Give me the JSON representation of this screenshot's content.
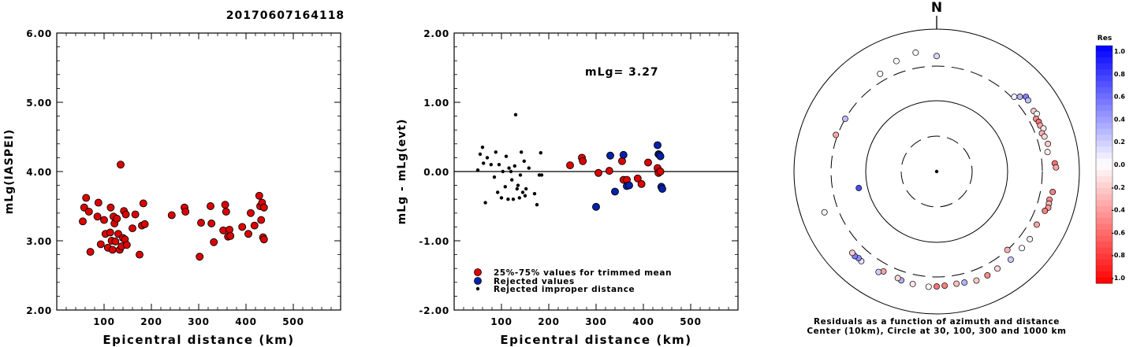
{
  "event_id": "20170607164118",
  "chart_data": [
    {
      "type": "scatter",
      "ylabel": "mLg(IASPEI)",
      "xlabel": "Epicentral distance (km)",
      "xlim": [
        0,
        600
      ],
      "ylim": [
        2.0,
        6.0
      ],
      "xticks": [
        "100",
        "200",
        "300",
        "400",
        "500"
      ],
      "xtick_values": [
        100,
        200,
        300,
        400,
        500
      ],
      "yticks": [
        "2.00",
        "3.00",
        "4.00",
        "5.00",
        "6.00"
      ],
      "ytick_values": [
        2,
        3,
        4,
        5,
        6
      ],
      "color": "#dd0000",
      "points": [
        [
          55,
          3.28
        ],
        [
          58,
          3.48
        ],
        [
          62,
          3.62
        ],
        [
          68,
          3.42
        ],
        [
          71,
          2.84
        ],
        [
          86,
          3.35
        ],
        [
          88,
          3.55
        ],
        [
          93,
          2.95
        ],
        [
          100,
          3.3
        ],
        [
          103,
          3.1
        ],
        [
          108,
          2.9
        ],
        [
          113,
          3.12
        ],
        [
          114,
          3.48
        ],
        [
          116,
          3.0
        ],
        [
          118,
          2.87
        ],
        [
          120,
          3.35
        ],
        [
          122,
          3.25
        ],
        [
          124,
          2.99
        ],
        [
          127,
          3.32
        ],
        [
          130,
          3.1
        ],
        [
          133,
          2.87
        ],
        [
          135,
          4.1
        ],
        [
          137,
          2.92
        ],
        [
          140,
          3.04
        ],
        [
          142,
          3.43
        ],
        [
          144,
          3.02
        ],
        [
          146,
          3.38
        ],
        [
          148,
          2.94
        ],
        [
          160,
          3.18
        ],
        [
          166,
          3.38
        ],
        [
          175,
          2.8
        ],
        [
          180,
          3.22
        ],
        [
          183,
          3.54
        ],
        [
          186,
          3.24
        ],
        [
          243,
          3.37
        ],
        [
          270,
          3.48
        ],
        [
          272,
          3.42
        ],
        [
          302,
          2.77
        ],
        [
          305,
          3.26
        ],
        [
          325,
          3.5
        ],
        [
          327,
          3.25
        ],
        [
          332,
          2.98
        ],
        [
          352,
          3.15
        ],
        [
          356,
          3.52
        ],
        [
          358,
          3.42
        ],
        [
          362,
          3.06
        ],
        [
          365,
          3.16
        ],
        [
          367,
          3.07
        ],
        [
          392,
          3.2
        ],
        [
          405,
          3.1
        ],
        [
          410,
          3.4
        ],
        [
          418,
          3.22
        ],
        [
          428,
          3.65
        ],
        [
          430,
          3.5
        ],
        [
          432,
          3.3
        ],
        [
          434,
          3.55
        ],
        [
          436,
          3.05
        ],
        [
          438,
          3.02
        ],
        [
          438,
          3.48
        ]
      ]
    },
    {
      "type": "scatter",
      "ylabel": "mLg - mLg(evt)",
      "xlabel": "Epicentral distance (km)",
      "xlim": [
        0,
        600
      ],
      "ylim": [
        -2.0,
        2.0
      ],
      "xticks": [
        "100",
        "200",
        "300",
        "400",
        "500"
      ],
      "xtick_values": [
        100,
        200,
        300,
        400,
        500
      ],
      "yticks": [
        "-2.00",
        "-1.00",
        "0.00",
        "1.00",
        "2.00"
      ],
      "ytick_values": [
        -2,
        -1,
        0,
        1,
        2
      ],
      "annotation": "mLg= 3.27",
      "reference_line": 0,
      "legend_position": "bottom-left",
      "series": [
        {
          "name": "25%-75% values for trimmed mean",
          "color": "#dd0000",
          "points": [
            [
              245,
              0.09
            ],
            [
              270,
              0.2
            ],
            [
              272,
              0.15
            ],
            [
              305,
              -0.02
            ],
            [
              328,
              0.01
            ],
            [
              355,
              0.15
            ],
            [
              358,
              -0.12
            ],
            [
              365,
              -0.12
            ],
            [
              388,
              -0.1
            ],
            [
              396,
              -0.18
            ],
            [
              410,
              0.13
            ],
            [
              430,
              0.05
            ],
            [
              432,
              -0.02
            ],
            [
              436,
              0.0
            ]
          ]
        },
        {
          "name": "Rejected values",
          "color": "#0022aa",
          "points": [
            [
              300,
              -0.51
            ],
            [
              330,
              0.23
            ],
            [
              340,
              -0.29
            ],
            [
              358,
              0.24
            ],
            [
              365,
              -0.21
            ],
            [
              370,
              -0.2
            ],
            [
              430,
              0.38
            ],
            [
              432,
              0.25
            ],
            [
              434,
              0.24
            ],
            [
              436,
              0.22
            ],
            [
              438,
              -0.22
            ],
            [
              440,
              -0.25
            ]
          ]
        },
        {
          "name": "Rejected improper distance",
          "color": "#000000",
          "points": [
            [
              50,
              0.02
            ],
            [
              55,
              0.25
            ],
            [
              60,
              0.35
            ],
            [
              62,
              0.12
            ],
            [
              66,
              -0.45
            ],
            [
              70,
              0.2
            ],
            [
              78,
              0.1
            ],
            [
              85,
              -0.08
            ],
            [
              88,
              0.28
            ],
            [
              92,
              -0.3
            ],
            [
              95,
              0.1
            ],
            [
              100,
              -0.38
            ],
            [
              103,
              0.0
            ],
            [
              108,
              -0.22
            ],
            [
              110,
              0.22
            ],
            [
              114,
              -0.4
            ],
            [
              116,
              0.05
            ],
            [
              120,
              0.0
            ],
            [
              122,
              -0.12
            ],
            [
              125,
              -0.4
            ],
            [
              128,
              0.08
            ],
            [
              130,
              0.82
            ],
            [
              133,
              -0.25
            ],
            [
              135,
              -0.2
            ],
            [
              138,
              -0.38
            ],
            [
              140,
              -0.05
            ],
            [
              142,
              0.28
            ],
            [
              145,
              -0.3
            ],
            [
              148,
              0.15
            ],
            [
              150,
              -0.35
            ],
            [
              152,
              -0.25
            ],
            [
              158,
              0.05
            ],
            [
              170,
              -0.32
            ],
            [
              175,
              -0.48
            ],
            [
              180,
              -0.05
            ],
            [
              183,
              0.27
            ],
            [
              185,
              -0.05
            ]
          ]
        }
      ]
    },
    {
      "type": "polar-scatter",
      "north_label": "N",
      "caption_line1": "Residuals as a function of azimuth and distance",
      "caption_line2": "Center (10km), Circle at 30, 100, 300 and 1000 km",
      "ring_distances_km": [
        30,
        100,
        300,
        1000
      ],
      "points": [
        [
          46,
          340,
          0.05
        ],
        [
          48,
          420,
          0.3
        ],
        [
          50,
          505,
          0.5
        ],
        [
          52,
          495,
          0.25
        ],
        [
          58,
          465,
          -0.2
        ],
        [
          60,
          490,
          0.0
        ],
        [
          62,
          430,
          -0.45
        ],
        [
          64,
          450,
          -0.55
        ],
        [
          66,
          445,
          -0.35
        ],
        [
          68,
          480,
          -0.1
        ],
        [
          70,
          420,
          -0.3
        ],
        [
          72,
          445,
          -0.15
        ],
        [
          76,
          470,
          -0.2
        ],
        [
          80,
          430,
          -0.05
        ],
        [
          86,
          540,
          -0.55
        ],
        [
          88,
          560,
          -0.35
        ],
        [
          100,
          530,
          -0.5
        ],
        [
          104,
          500,
          -0.45
        ],
        [
          106,
          510,
          -0.3
        ],
        [
          108,
          520,
          -0.4
        ],
        [
          110,
          480,
          -0.5
        ],
        [
          118,
          445,
          -0.35
        ],
        [
          126,
          480,
          0.05
        ],
        [
          132,
          470,
          0.0
        ],
        [
          138,
          300,
          -0.3
        ],
        [
          140,
          480,
          0.2
        ],
        [
          148,
          470,
          -0.15
        ],
        [
          154,
          490,
          -0.45
        ],
        [
          160,
          500,
          -0.2
        ],
        [
          166,
          470,
          0.3
        ],
        [
          170,
          460,
          -0.25
        ],
        [
          176,
          470,
          -0.5
        ],
        [
          180,
          480,
          -0.55
        ],
        [
          184,
          490,
          0.0
        ],
        [
          192,
          480,
          -0.1
        ],
        [
          198,
          470,
          0.3
        ],
        [
          200,
          450,
          -0.15
        ],
        [
          208,
          445,
          -0.35
        ],
        [
          210,
          500,
          0.2
        ],
        [
          220,
          520,
          0.1
        ],
        [
          222,
          510,
          0.45
        ],
        [
          224,
          530,
          0.5
        ],
        [
          226,
          520,
          -0.2
        ],
        [
          250,
          560,
          0.05
        ],
        [
          258,
          150,
          0.7
        ],
        [
          290,
          330,
          -0.35
        ],
        [
          300,
          300,
          0.25
        ],
        [
          330,
          440,
          0.0
        ],
        [
          340,
          530,
          0.0
        ],
        [
          350,
          590,
          0.0
        ],
        [
          360,
          490,
          0.15
        ]
      ]
    }
  ],
  "colorbar": {
    "title": "Res",
    "labels": [
      "1.0",
      "0.8",
      "0.6",
      "0.4",
      "0.2",
      "0.0",
      "-0.2",
      "-0.4",
      "-0.6",
      "-0.8",
      "-1.0"
    ]
  }
}
